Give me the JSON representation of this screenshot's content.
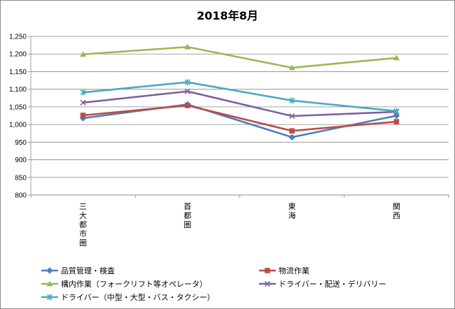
{
  "chart_data": {
    "type": "line",
    "title": "2018年8月",
    "xlabel": "",
    "ylabel": "",
    "categories": [
      "三大都市圏",
      "首都圏",
      "東海",
      "関西"
    ],
    "ylim": [
      800,
      1250
    ],
    "ytick_step": 50,
    "ytick_labels": [
      "800",
      "850",
      "900",
      "950",
      "1,000",
      "1,050",
      "1,100",
      "1,150",
      "1,200",
      "1,250"
    ],
    "grid": true,
    "legend_position": "bottom",
    "series": [
      {
        "name": "品質管理・検査",
        "values": [
          1018,
          1057,
          964,
          1025
        ],
        "color": "#4a7ebb",
        "marker": "diamond"
      },
      {
        "name": "物流作業",
        "values": [
          1026,
          1054,
          982,
          1008
        ],
        "color": "#be4b48",
        "marker": "square"
      },
      {
        "name": "構内作業（フォークリフト等オペレータ）",
        "values": [
          1199,
          1220,
          1161,
          1189
        ],
        "color": "#98b954",
        "marker": "triangle"
      },
      {
        "name": "ドライバー・配送・デリバリー",
        "values": [
          1062,
          1094,
          1024,
          1036
        ],
        "color": "#7d60a0",
        "marker": "x"
      },
      {
        "name": "ドライバー（中型・大型・バス・タクシー）",
        "values": [
          1091,
          1120,
          1068,
          1038
        ],
        "color": "#46aac5",
        "marker": "star"
      }
    ]
  }
}
